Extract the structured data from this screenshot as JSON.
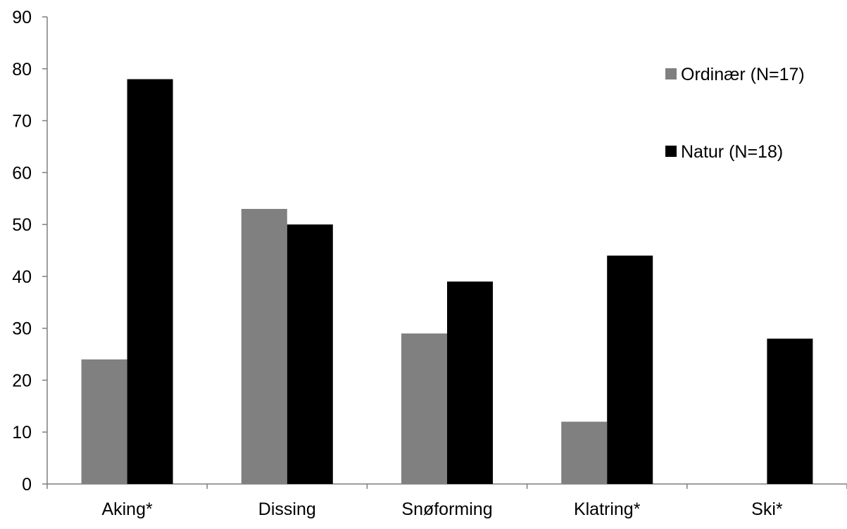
{
  "chart_data": {
    "type": "bar",
    "title": "",
    "xlabel": "",
    "ylabel": "",
    "categories": [
      "Aking*",
      "Dissing",
      "Snøforming",
      "Klatring*",
      "Ski*"
    ],
    "series": [
      {
        "name": "Ordinær (N=17)",
        "values": [
          24,
          53,
          29,
          12,
          0
        ],
        "color": "#808080"
      },
      {
        "name": "Natur (N=18)",
        "values": [
          78,
          50,
          39,
          44,
          28
        ],
        "color": "#000000"
      }
    ],
    "ylim": [
      0,
      90
    ],
    "yticks": [
      "0",
      "10",
      "20",
      "30",
      "40",
      "50",
      "60",
      "70",
      "80",
      "90"
    ],
    "grid": false,
    "legend_position": "top-right"
  }
}
